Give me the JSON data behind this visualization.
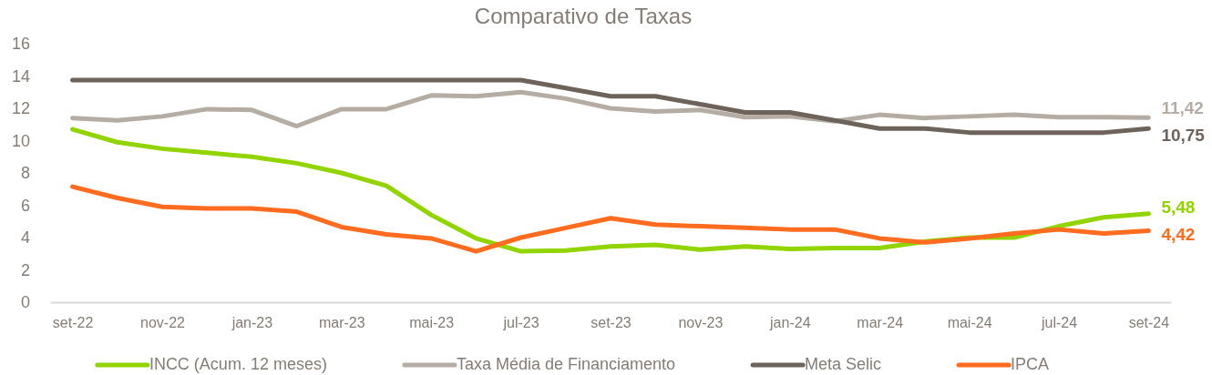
{
  "chart_data": {
    "type": "line",
    "title": "Comparativo de Taxas",
    "categories": [
      "set-22",
      null,
      "nov-22",
      null,
      "jan-23",
      null,
      "mar-23",
      null,
      "mai-23",
      null,
      "jul-23",
      null,
      "set-23",
      null,
      "nov-23",
      null,
      "jan-24",
      null,
      "mar-24",
      null,
      "mai-24",
      null,
      "jul-24",
      null,
      "set-24"
    ],
    "series": [
      {
        "name": "INCC (Acum. 12 meses)",
        "color": "#92d400",
        "values": [
          10.7,
          9.9,
          9.5,
          9.25,
          9.0,
          8.6,
          8.0,
          7.2,
          5.4,
          3.95,
          3.15,
          3.2,
          3.45,
          3.55,
          3.25,
          3.45,
          3.3,
          3.35,
          3.35,
          3.75,
          4.0,
          4.0,
          4.7,
          5.25,
          5.48
        ],
        "value_labels": [
          null,
          null,
          null,
          null,
          null,
          null,
          null,
          null,
          null,
          null,
          null,
          null,
          null,
          null,
          null,
          null,
          null,
          null,
          null,
          null,
          null,
          null,
          null,
          null,
          "5,48"
        ]
      },
      {
        "name": "Taxa Média de Financiamento",
        "color": "#b5aca4",
        "values": [
          11.4,
          11.25,
          11.5,
          11.95,
          11.9,
          10.9,
          11.95,
          11.95,
          12.8,
          12.75,
          13.0,
          12.6,
          12.0,
          11.8,
          11.9,
          11.45,
          11.5,
          11.2,
          11.6,
          11.4,
          11.5,
          11.6,
          11.45,
          11.45,
          11.42
        ],
        "value_labels": [
          null,
          null,
          null,
          null,
          null,
          null,
          null,
          null,
          null,
          null,
          null,
          null,
          null,
          null,
          null,
          null,
          null,
          null,
          null,
          null,
          null,
          null,
          null,
          null,
          "11,42"
        ]
      },
      {
        "name": "Meta Selic",
        "color": "#6e635b",
        "values": [
          13.75,
          13.75,
          13.75,
          13.75,
          13.75,
          13.75,
          13.75,
          13.75,
          13.75,
          13.75,
          13.75,
          13.25,
          12.75,
          12.75,
          12.25,
          11.75,
          11.75,
          11.25,
          10.75,
          10.75,
          10.5,
          10.5,
          10.5,
          10.5,
          10.75
        ],
        "value_labels": [
          null,
          null,
          null,
          null,
          null,
          null,
          null,
          null,
          null,
          null,
          null,
          null,
          null,
          null,
          null,
          null,
          null,
          null,
          null,
          null,
          null,
          null,
          null,
          null,
          "10,75"
        ]
      },
      {
        "name": "IPCA",
        "color": "#ff6b1f",
        "values": [
          7.15,
          6.45,
          5.9,
          5.8,
          5.8,
          5.6,
          4.65,
          4.2,
          3.95,
          3.15,
          4.0,
          4.6,
          5.2,
          4.8,
          4.7,
          4.6,
          4.5,
          4.5,
          3.95,
          3.7,
          3.95,
          4.25,
          4.5,
          4.25,
          4.42
        ],
        "value_labels": [
          null,
          null,
          null,
          null,
          null,
          null,
          null,
          null,
          null,
          null,
          null,
          null,
          null,
          null,
          null,
          null,
          null,
          null,
          null,
          null,
          null,
          null,
          null,
          null,
          "4,42"
        ]
      }
    ],
    "ylim": [
      0,
      16
    ],
    "yticks": [
      0,
      2,
      4,
      6,
      8,
      10,
      12,
      14,
      16
    ],
    "legend": "bottom",
    "line_style": "solid"
  }
}
